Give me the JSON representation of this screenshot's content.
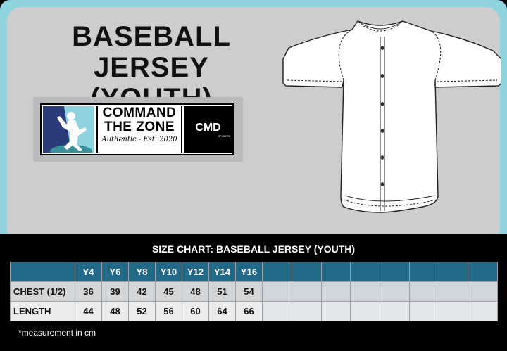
{
  "header": {
    "title_line1": "BASEBALL JERSEY",
    "title_line2": "(YOUTH)"
  },
  "logo": {
    "line1": "COMMAND",
    "line2": "THE ZONE",
    "tagline": "Authentic - Est. 2020",
    "brand": "CMD",
    "brand_sub": "SPORTS"
  },
  "size_chart": {
    "title": "SIZE CHART:  BASEBALL JERSEY (YOUTH)",
    "headers": [
      "",
      "Y4",
      "Y6",
      "Y8",
      "Y10",
      "Y12",
      "Y14",
      "Y16"
    ],
    "empty_columns": 8,
    "rows": [
      {
        "label": "CHEST (1/2)",
        "values": [
          "36",
          "39",
          "42",
          "45",
          "48",
          "51",
          "54"
        ]
      },
      {
        "label": "LENGTH",
        "values": [
          "44",
          "48",
          "52",
          "56",
          "60",
          "64",
          "66"
        ]
      }
    ],
    "note": "*measurement in cm"
  },
  "colors": {
    "header_blue": "#236a88",
    "panel_gray": "#cccdcf",
    "accent_cyan": "#8fd3df"
  }
}
